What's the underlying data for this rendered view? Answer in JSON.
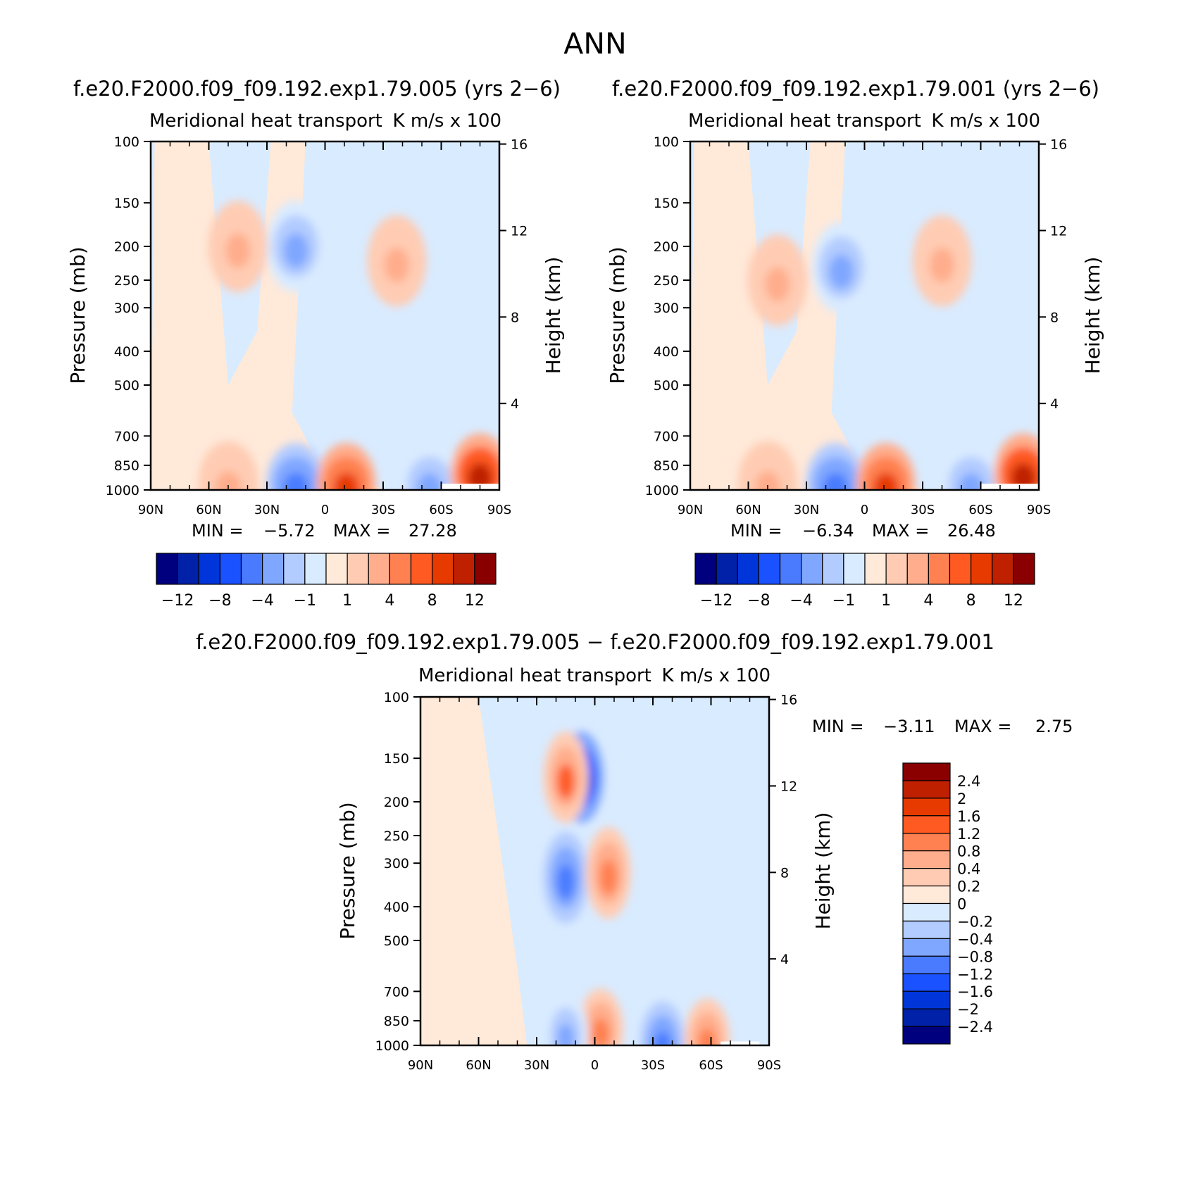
{
  "figure_title": "ANN",
  "panels": [
    {
      "case_title": "f.e20.F2000.f09_f09.192.exp1.79.005 (yrs 2−6)",
      "variable_title": "Meridional heat transport",
      "units": "K m/s x 100",
      "y_label": "Pressure (mb)",
      "y2_label": "Height (km)",
      "stats": {
        "min_label": "MIN =",
        "min_value": "−5.72",
        "max_label": "MAX =",
        "max_value": "27.28"
      }
    },
    {
      "case_title": "f.e20.F2000.f09_f09.192.exp1.79.001 (yrs 2−6)",
      "variable_title": "Meridional heat transport",
      "units": "K m/s x 100",
      "y_label": "Pressure (mb)",
      "y2_label": "Height (km)",
      "stats": {
        "min_label": "MIN =",
        "min_value": "−6.34",
        "max_label": "MAX =",
        "max_value": "26.48"
      }
    },
    {
      "case_title": "f.e20.F2000.f09_f09.192.exp1.79.005 − f.e20.F2000.f09_f09.192.exp1.79.001",
      "variable_title": "Meridional heat transport",
      "units": "K m/s x 100",
      "y_label": "Pressure (mb)",
      "y2_label": "Height (km)",
      "stats": {
        "min_label": "MIN =",
        "min_value": "−3.11",
        "max_label": "MAX =",
        "max_value": "2.75"
      }
    }
  ],
  "colorbar_main": {
    "colors": [
      "#00007f",
      "#0021a8",
      "#0036d9",
      "#1a52ff",
      "#4a7bff",
      "#80a7ff",
      "#b3ccff",
      "#d9ebff",
      "#ffe9d9",
      "#ffccb3",
      "#ffad8c",
      "#ff8050",
      "#ff5a22",
      "#e63a00",
      "#bf2000",
      "#8a0000"
    ],
    "tick_labels": [
      "−12",
      "−8",
      "−4",
      "−1",
      "1",
      "4",
      "8",
      "12"
    ]
  },
  "colorbar_diff": {
    "colors": [
      "#00007f",
      "#0021a8",
      "#0036d9",
      "#1a52ff",
      "#4a7bff",
      "#80a7ff",
      "#b3ccff",
      "#d9ebff",
      "#ffe9d9",
      "#ffccb3",
      "#ffad8c",
      "#ff8050",
      "#ff5a22",
      "#e63a00",
      "#bf2000",
      "#8a0000"
    ],
    "tick_labels": [
      "−2.4",
      "−2",
      "−1.6",
      "−1.2",
      "−0.8",
      "−0.4",
      "−0.2",
      "0",
      "0.2",
      "0.4",
      "0.8",
      "1.2",
      "1.6",
      "2",
      "2.4"
    ]
  },
  "chart_data": [
    {
      "type": "heatmap",
      "title": "Meridional heat transport",
      "subtitle": "f.e20.F2000.f09_f09.192.exp1.79.005 (yrs 2−6)",
      "units": "K m/s x 100",
      "xlabel": "",
      "ylabel": "Pressure (mb)",
      "y2label": "Height (km)",
      "x_ticks": [
        "90N",
        "60N",
        "30N",
        "0",
        "30S",
        "60S",
        "90S"
      ],
      "x_tick_values": [
        90,
        60,
        30,
        0,
        -30,
        -60,
        -90
      ],
      "y_ticks": [
        100,
        150,
        200,
        250,
        300,
        400,
        500,
        700,
        850,
        1000
      ],
      "y2_ticks": [
        16,
        12,
        8,
        4
      ],
      "y_scale": "log-pressure, reversed",
      "contour_levels": [
        -12,
        -10,
        -8,
        -6,
        -4,
        -2,
        -1,
        0,
        1,
        2,
        4,
        6,
        8,
        10,
        12
      ],
      "min": -5.72,
      "max": 27.28,
      "features": [
        {
          "lat": 15,
          "p": 200,
          "value": -3,
          "note": "upper-level negative core"
        },
        {
          "lat": 45,
          "p": 200,
          "value": 3,
          "note": "upper-level positive core"
        },
        {
          "lat": -37,
          "p": 220,
          "value": 2
        },
        {
          "lat": 15,
          "p": 960,
          "value": -6
        },
        {
          "lat": -11,
          "p": 960,
          "value": 8
        },
        {
          "lat": 50,
          "p": 950,
          "value": 3
        },
        {
          "lat": -54,
          "p": 960,
          "value": -3
        },
        {
          "lat": -80,
          "p": 900,
          "value": 10,
          "note": "near-surface southern high-latitude maximum"
        }
      ]
    },
    {
      "type": "heatmap",
      "title": "Meridional heat transport",
      "subtitle": "f.e20.F2000.f09_f09.192.exp1.79.001 (yrs 2−6)",
      "units": "K m/s x 100",
      "xlabel": "",
      "ylabel": "Pressure (mb)",
      "y2label": "Height (km)",
      "x_ticks": [
        "90N",
        "60N",
        "30N",
        "0",
        "30S",
        "60S",
        "90S"
      ],
      "x_tick_values": [
        90,
        60,
        30,
        0,
        -30,
        -60,
        -90
      ],
      "y_ticks": [
        100,
        150,
        200,
        250,
        300,
        400,
        500,
        700,
        850,
        1000
      ],
      "y2_ticks": [
        16,
        12,
        8,
        4
      ],
      "y_scale": "log-pressure, reversed",
      "contour_levels": [
        -12,
        -10,
        -8,
        -6,
        -4,
        -2,
        -1,
        0,
        1,
        2,
        4,
        6,
        8,
        10,
        12
      ],
      "min": -6.34,
      "max": 26.48,
      "features": [
        {
          "lat": 12,
          "p": 230,
          "value": -3
        },
        {
          "lat": 45,
          "p": 250,
          "value": 3
        },
        {
          "lat": -40,
          "p": 220,
          "value": 2
        },
        {
          "lat": 15,
          "p": 960,
          "value": -6
        },
        {
          "lat": -11,
          "p": 960,
          "value": 8
        },
        {
          "lat": 50,
          "p": 950,
          "value": 3
        },
        {
          "lat": -55,
          "p": 960,
          "value": -3
        },
        {
          "lat": -82,
          "p": 900,
          "value": 10
        }
      ]
    },
    {
      "type": "heatmap",
      "title": "Meridional heat transport",
      "subtitle": "f.e20.F2000.f09_f09.192.exp1.79.005 − f.e20.F2000.f09_f09.192.exp1.79.001",
      "units": "K m/s x 100",
      "xlabel": "",
      "ylabel": "Pressure (mb)",
      "y2label": "Height (km)",
      "x_ticks": [
        "90N",
        "60N",
        "30N",
        "0",
        "30S",
        "60S",
        "90S"
      ],
      "x_tick_values": [
        90,
        60,
        30,
        0,
        -30,
        -60,
        -90
      ],
      "y_ticks": [
        100,
        150,
        200,
        250,
        300,
        400,
        500,
        700,
        850,
        1000
      ],
      "y2_ticks": [
        16,
        12,
        8,
        4
      ],
      "y_scale": "log-pressure, reversed",
      "contour_levels": [
        -2.4,
        -2,
        -1.6,
        -1.2,
        -0.8,
        -0.4,
        -0.2,
        0,
        0.2,
        0.4,
        0.8,
        1.2,
        1.6,
        2,
        2.4
      ],
      "min": -3.11,
      "max": 2.75,
      "features": [
        {
          "lat": 7,
          "p": 170,
          "value": -2.2
        },
        {
          "lat": 15,
          "p": 170,
          "value": 1.2
        },
        {
          "lat": 15,
          "p": 330,
          "value": -1.0
        },
        {
          "lat": -7,
          "p": 320,
          "value": 1.0
        },
        {
          "lat": -3,
          "p": 900,
          "value": 0.8
        },
        {
          "lat": 15,
          "p": 930,
          "value": -0.6
        },
        {
          "lat": -35,
          "p": 980,
          "value": -0.9
        },
        {
          "lat": -58,
          "p": 960,
          "value": 0.9
        }
      ]
    }
  ]
}
